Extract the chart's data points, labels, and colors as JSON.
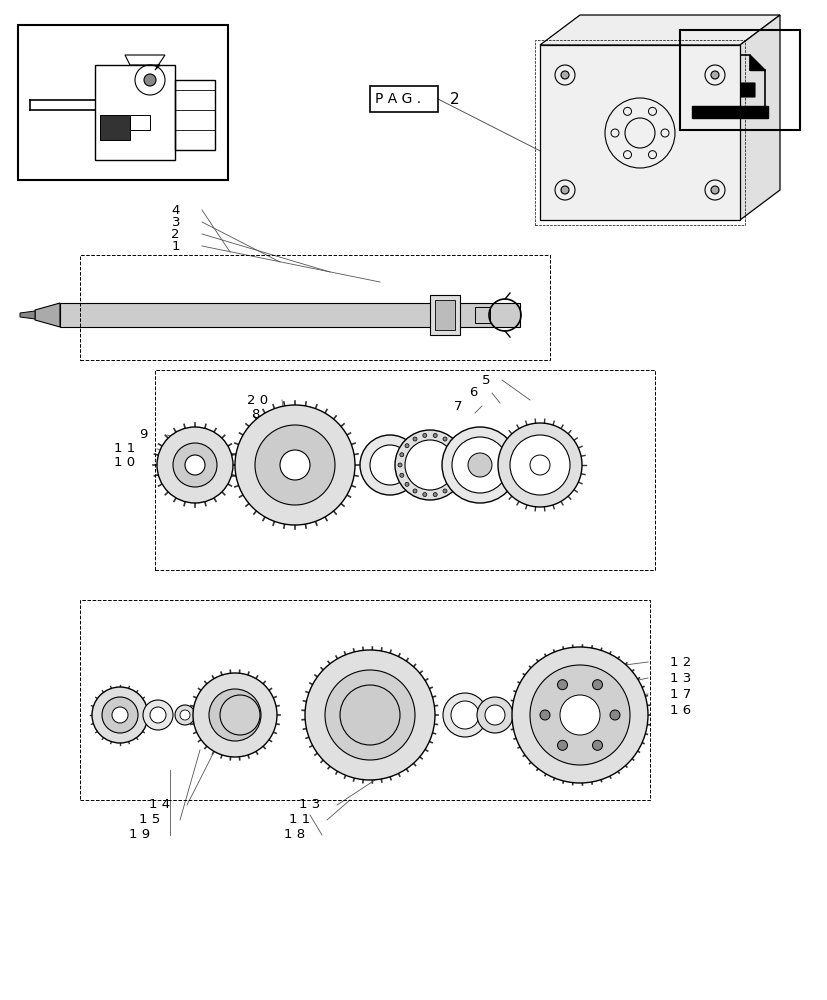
{
  "bg_color": "#ffffff",
  "line_color": "#000000",
  "light_gray": "#888888",
  "mid_gray": "#555555",
  "dark_gray": "#222222",
  "page_width": 8.28,
  "page_height": 10.0,
  "title": "",
  "labels": {
    "pag": "P A G .",
    "pag_num": "2"
  },
  "part_numbers": {
    "top_shaft": [
      "4",
      "3",
      "2",
      "1"
    ],
    "middle_group": [
      "9",
      "1 1",
      "1 0",
      "2 0",
      "8",
      "5",
      "6",
      "7"
    ],
    "bottom_group": [
      "1 2",
      "1 3",
      "1 7",
      "1 6",
      "1 3",
      "1 1",
      "1 8",
      "1 4",
      "1 5",
      "1 9"
    ]
  }
}
